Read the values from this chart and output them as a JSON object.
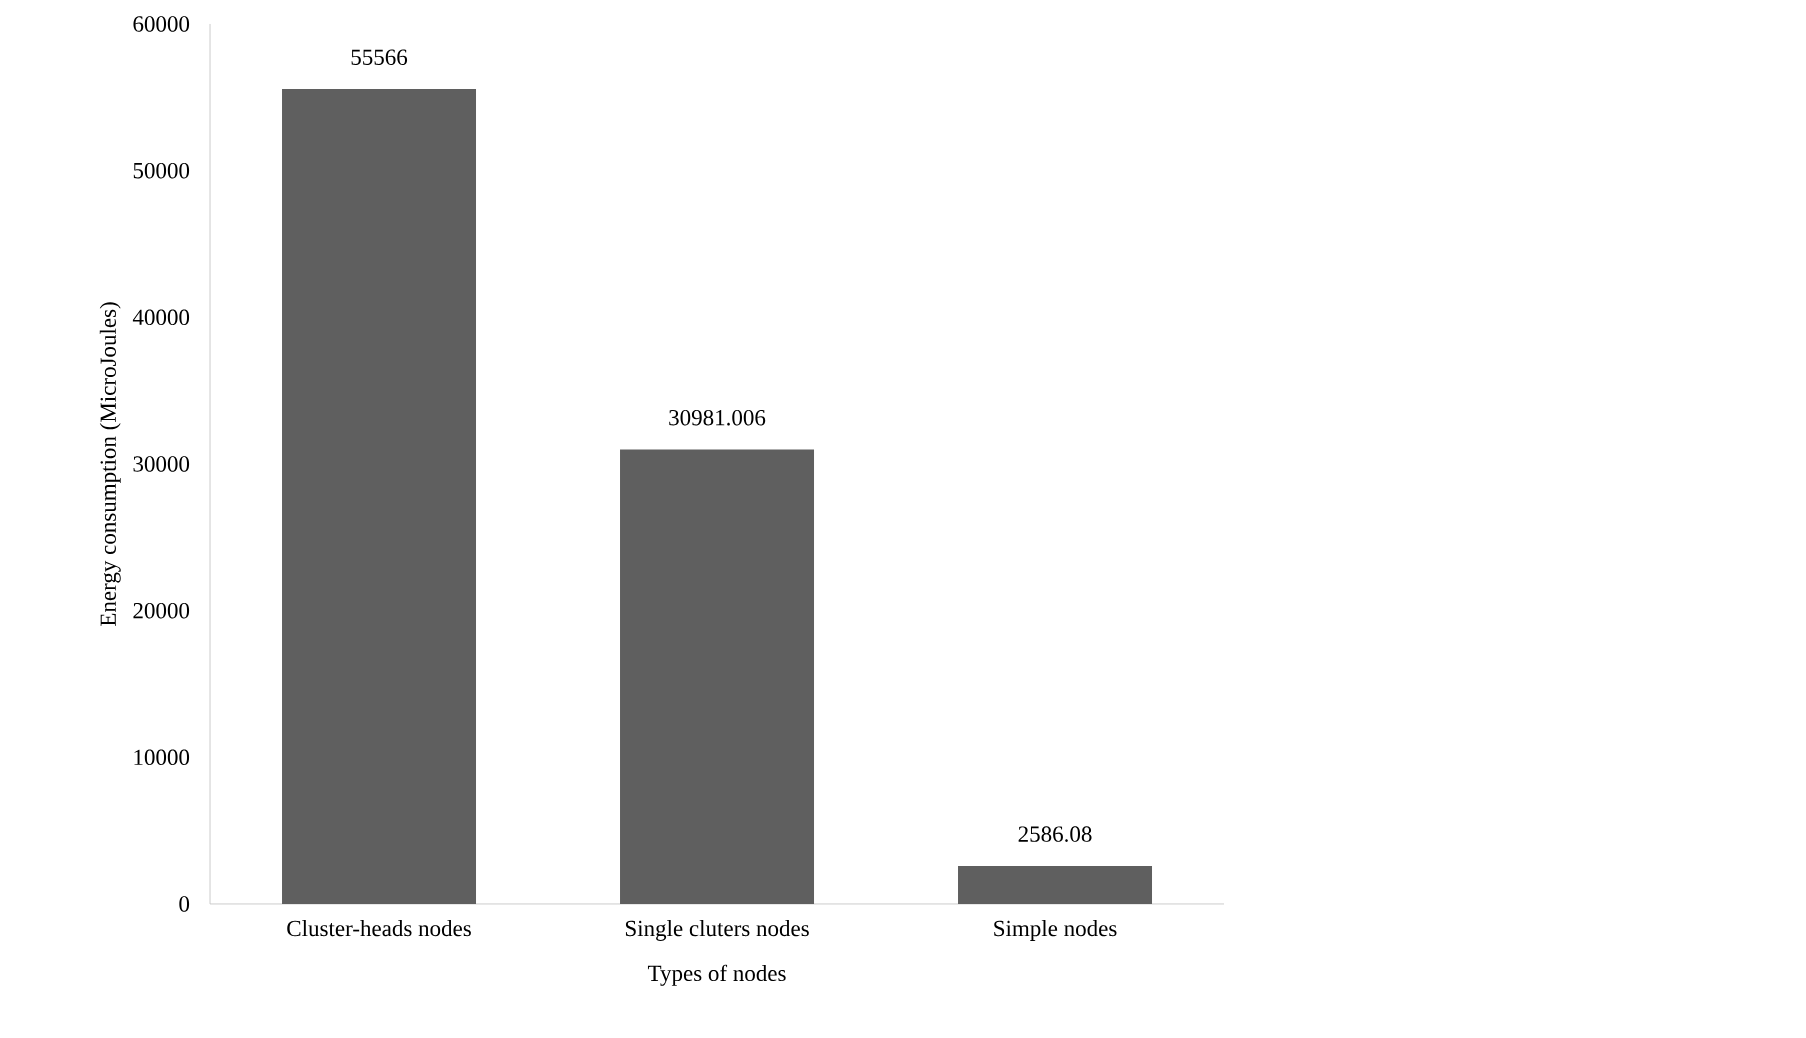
{
  "chart_data": {
    "type": "bar",
    "xlabel": "Types of nodes",
    "ylabel": "Energy consumption (MicroJoules)",
    "categories": [
      "Cluster-heads nodes",
      "Single cluters nodes",
      "Simple nodes"
    ],
    "values": [
      55566,
      30981.006,
      2586.08
    ],
    "color": "#5f5f5f",
    "ylim": [
      0,
      60000
    ],
    "yticks": [
      0,
      10000,
      20000,
      30000,
      40000,
      50000,
      60000
    ],
    "data_labels": true
  }
}
